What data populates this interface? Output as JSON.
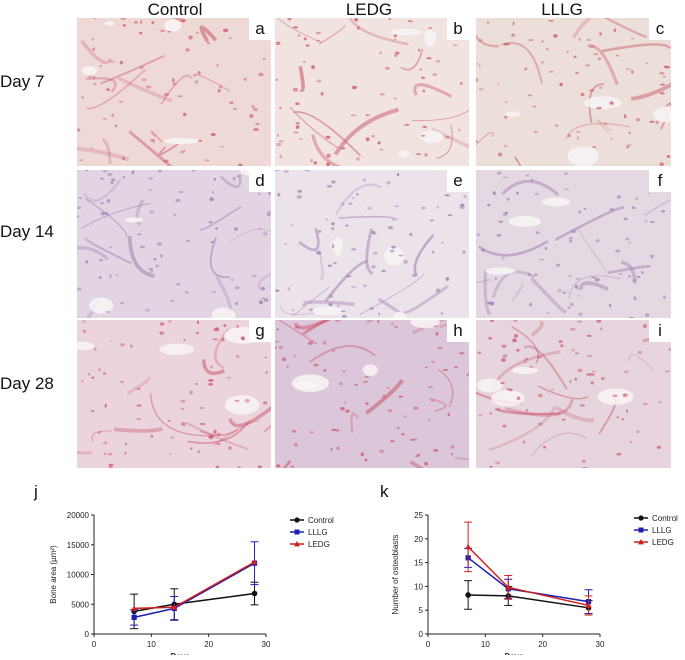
{
  "columns": [
    "Control",
    "LEDG",
    "LLLG"
  ],
  "rows": [
    "Day 7",
    "Day 14",
    "Day 28"
  ],
  "panel_letters": [
    [
      "a",
      "b",
      "c"
    ],
    [
      "d",
      "e",
      "f"
    ],
    [
      "g",
      "h",
      "i"
    ]
  ],
  "panel_tints": [
    [
      "#eed9d7",
      "#f1e3e0",
      "#ecdfd9"
    ],
    [
      "#e2d4e2",
      "#ece2ea",
      "#e4d9e2"
    ],
    [
      "#ecd4dd",
      "#dcc6d9",
      "#e6d5df"
    ]
  ],
  "stain_colors": {
    "eosin": "#c9546a",
    "hematoxylin": "#9a7bb0"
  },
  "chart_data": [
    {
      "letter": "j",
      "type": "line",
      "xlabel": "Days",
      "ylabel": "Bone area (µm²)",
      "xlim": [
        0,
        30
      ],
      "ylim": [
        0,
        20000
      ],
      "xticks": [
        0,
        10,
        20,
        30
      ],
      "yticks": [
        0,
        5000,
        10000,
        15000,
        20000
      ],
      "x": [
        7,
        14,
        28
      ],
      "series": [
        {
          "name": "Control",
          "color": "#111111",
          "marker": "circle",
          "values": [
            3800,
            5000,
            6800
          ],
          "errors": [
            2900,
            2600,
            1900
          ]
        },
        {
          "name": "LLLG",
          "color": "#1f1fb4",
          "marker": "square",
          "values": [
            2800,
            4300,
            11900
          ],
          "errors": [
            1300,
            2000,
            3600
          ]
        },
        {
          "name": "LEDG",
          "color": "#d01f1f",
          "marker": "triangle",
          "values": [
            4300,
            4500,
            12100
          ],
          "errors": [
            0,
            0,
            0
          ]
        }
      ]
    },
    {
      "letter": "k",
      "type": "line",
      "xlabel": "Days",
      "ylabel": "Number of osteoblasts",
      "xlim": [
        0,
        30
      ],
      "ylim": [
        0,
        25
      ],
      "xticks": [
        0,
        10,
        20,
        30
      ],
      "yticks": [
        0,
        5,
        10,
        15,
        20,
        25
      ],
      "x": [
        7,
        14,
        28
      ],
      "series": [
        {
          "name": "Control",
          "color": "#111111",
          "marker": "circle",
          "values": [
            8.2,
            8.0,
            5.5
          ],
          "errors": [
            3.0,
            2.0,
            1.5
          ]
        },
        {
          "name": "LLLG",
          "color": "#1f1fb4",
          "marker": "square",
          "values": [
            16.0,
            9.5,
            6.8
          ],
          "errors": [
            2.0,
            2.0,
            2.5
          ]
        },
        {
          "name": "LEDG",
          "color": "#d01f1f",
          "marker": "triangle",
          "values": [
            18.3,
            9.8,
            6.0
          ],
          "errors": [
            5.2,
            2.5,
            2.0
          ]
        }
      ]
    }
  ]
}
